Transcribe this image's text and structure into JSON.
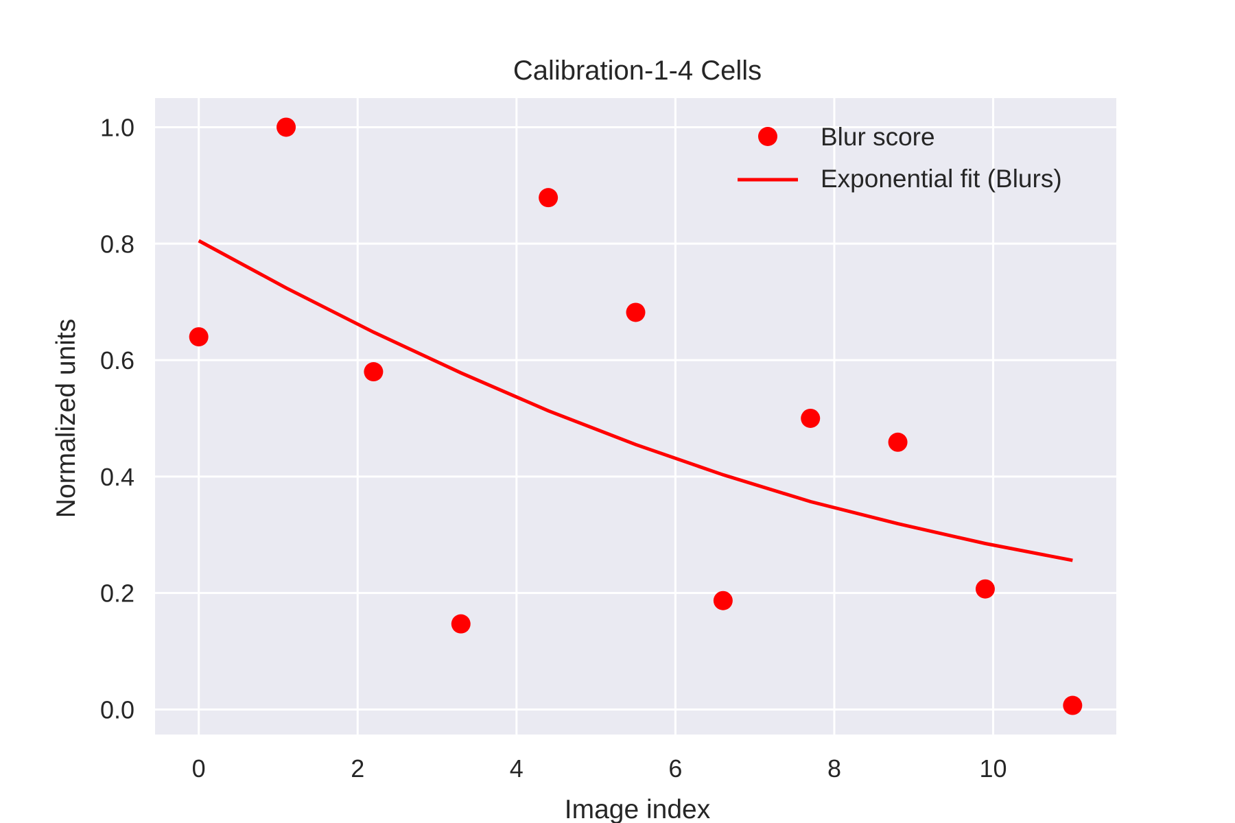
{
  "chart_data": {
    "type": "scatter",
    "title": "Calibration-1-4 Cells",
    "xlabel": "Image index",
    "ylabel": "Normalized units",
    "xlim": [
      -0.55,
      11.55
    ],
    "ylim": [
      -0.043,
      1.05
    ],
    "xticks": [
      0,
      2,
      4,
      6,
      8,
      10
    ],
    "xtick_labels": [
      "0",
      "2",
      "4",
      "6",
      "8",
      "10"
    ],
    "yticks": [
      0.0,
      0.2,
      0.4,
      0.6,
      0.8,
      1.0
    ],
    "ytick_labels": [
      "0.0",
      "0.2",
      "0.4",
      "0.6",
      "0.8",
      "1.0"
    ],
    "grid": true,
    "legend_position": "top-right",
    "series": [
      {
        "name": "Blur score",
        "kind": "scatter",
        "color": "#ff0000",
        "x": [
          0,
          1.1,
          2.2,
          3.3,
          4.4,
          5.5,
          6.6,
          7.7,
          8.8,
          9.9,
          11.0
        ],
        "y": [
          0.64,
          1.0,
          0.58,
          0.147,
          0.879,
          0.682,
          0.187,
          0.5,
          0.459,
          0.207,
          0.007
        ]
      },
      {
        "name": "Exponential fit (Blurs)",
        "kind": "line",
        "color": "#ff0000",
        "x": [
          0,
          1.1,
          2.2,
          3.3,
          4.4,
          5.5,
          6.6,
          7.7,
          8.8,
          9.9,
          11.0
        ],
        "y": [
          0.805,
          0.724,
          0.648,
          0.578,
          0.513,
          0.455,
          0.403,
          0.357,
          0.319,
          0.285,
          0.256
        ]
      }
    ]
  }
}
